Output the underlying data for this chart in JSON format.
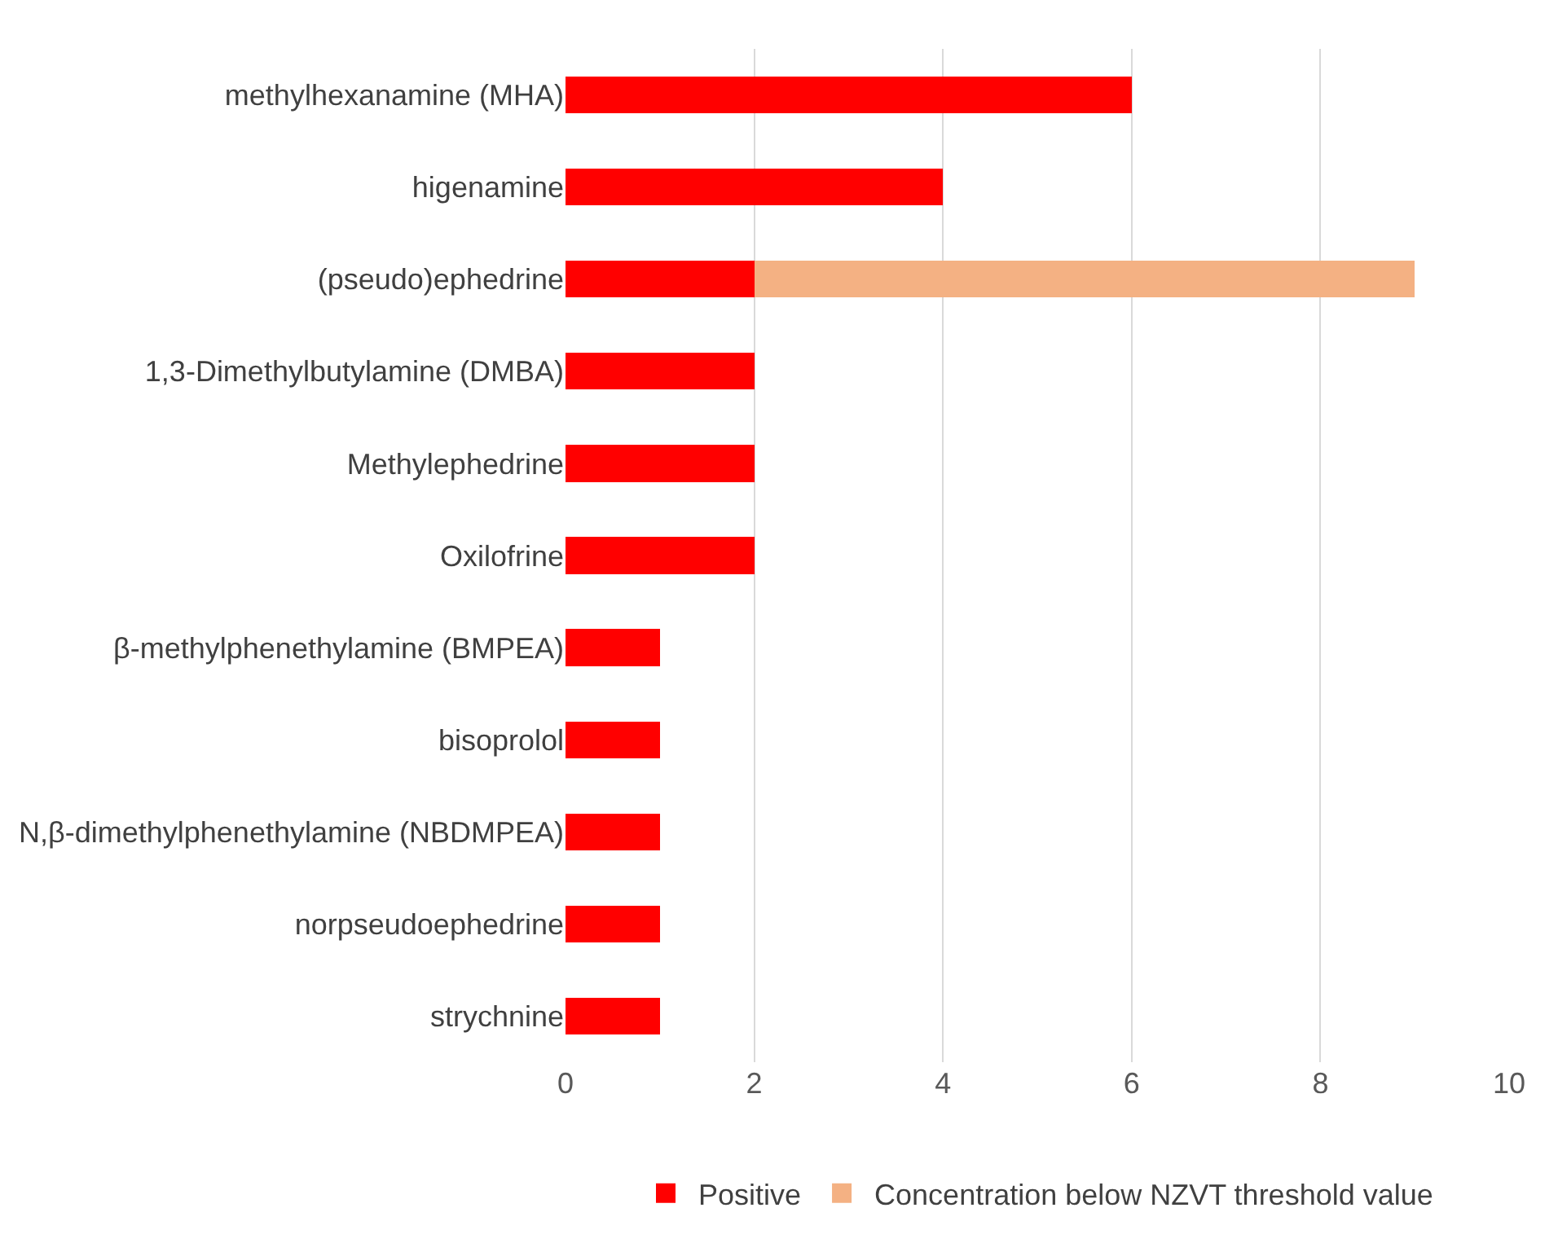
{
  "chart_data": {
    "type": "bar",
    "orientation": "horizontal",
    "stacked": true,
    "categories": [
      "methylhexanamine (MHA)",
      "higenamine",
      "(pseudo)ephedrine",
      "1,3-Dimethylbutylamine (DMBA)",
      "Methylephedrine",
      "Oxilofrine",
      "β-methylphenethylamine (BMPEA)",
      "bisoprolol",
      "N,β-dimethylphenethylamine (NBDMPEA)",
      "norpseudoephedrine",
      "strychnine"
    ],
    "series": [
      {
        "name": "Positive",
        "color": "#ff0000",
        "values": [
          6,
          4,
          2,
          2,
          2,
          2,
          1,
          1,
          1,
          1,
          1
        ]
      },
      {
        "name": "Concentration below NZVT threshold value",
        "color": "#f4b183",
        "values": [
          null,
          null,
          7,
          null,
          null,
          null,
          null,
          null,
          null,
          null,
          null
        ]
      }
    ],
    "xlim": [
      0,
      10
    ],
    "xticks": [
      0,
      2,
      4,
      6,
      8,
      10
    ],
    "grid": "x",
    "legend": "bottom"
  }
}
